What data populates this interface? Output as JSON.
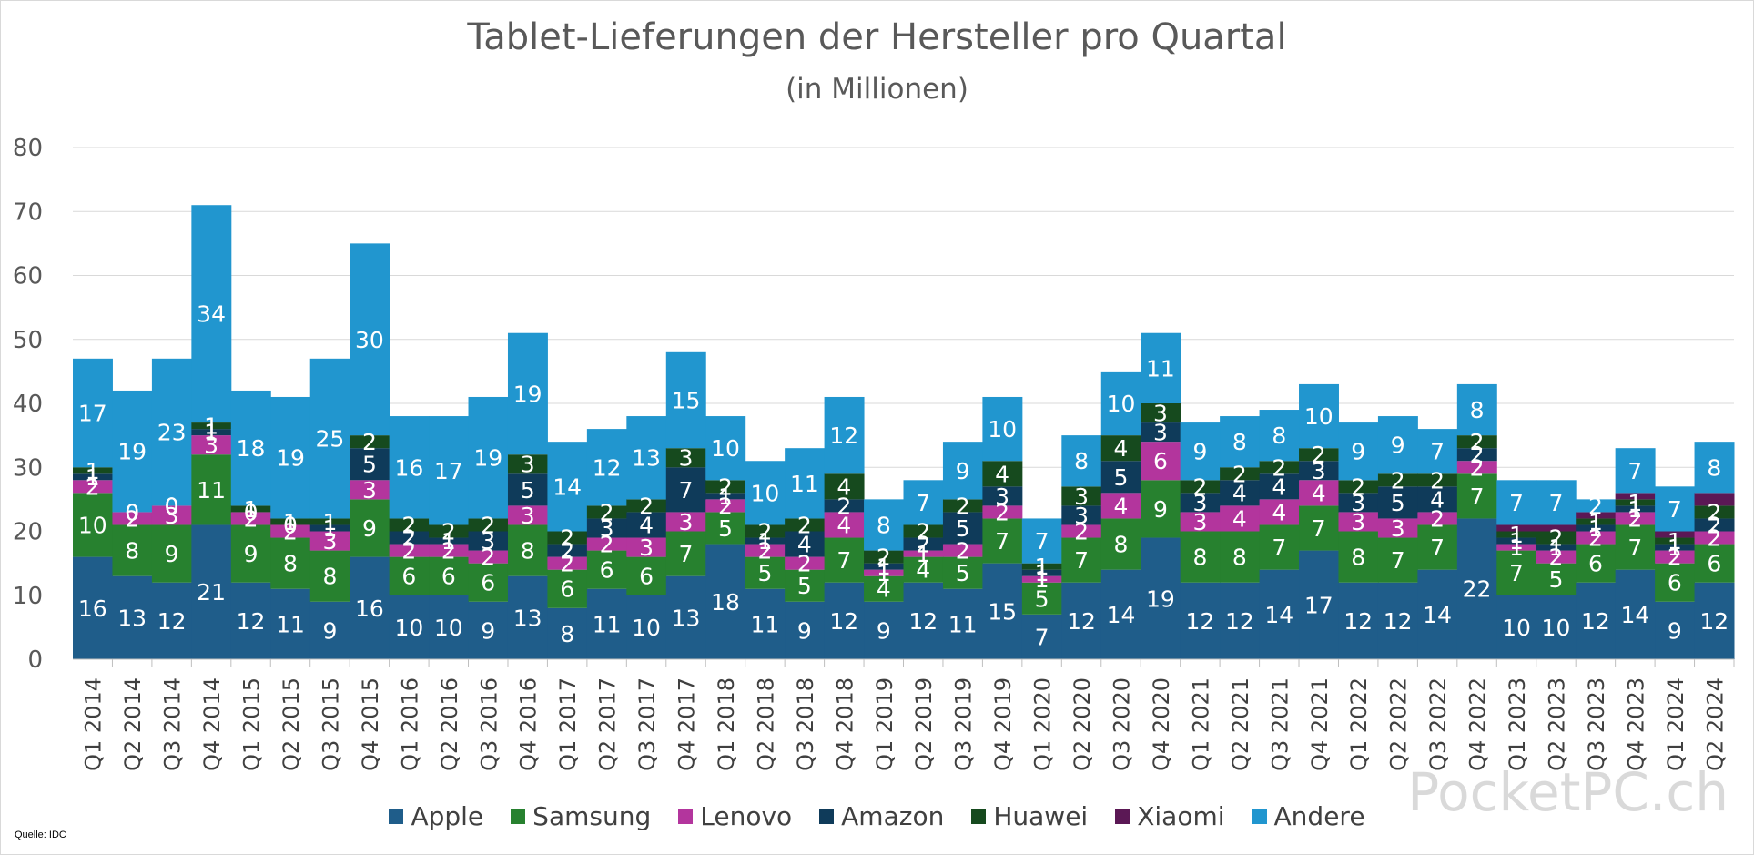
{
  "chart_data": {
    "type": "bar",
    "stacked": true,
    "title": "Tablet-Lieferungen der Hersteller pro Quartal",
    "subtitle": "(in Millionen)",
    "source": "Quelle: IDC",
    "watermark": "PocketPC.ch",
    "ylim": [
      0,
      80
    ],
    "yticks": [
      0,
      10,
      20,
      30,
      40,
      50,
      60,
      70,
      80
    ],
    "grid": true,
    "legend_position": "bottom",
    "categories": [
      "Q1 2014",
      "Q2 2014",
      "Q3 2014",
      "Q4 2014",
      "Q1 2015",
      "Q2 2015",
      "Q3 2015",
      "Q4 2015",
      "Q1 2016",
      "Q2 2016",
      "Q3 2016",
      "Q4 2016",
      "Q1 2017",
      "Q2 2017",
      "Q3 2017",
      "Q4 2017",
      "Q1 2018",
      "Q2 2018",
      "Q3 2018",
      "Q4 2018",
      "Q1 2019",
      "Q2 2019",
      "Q3 2019",
      "Q4 2019",
      "Q1 2020",
      "Q2 2020",
      "Q3 2020",
      "Q4 2020",
      "Q1 2021",
      "Q2 2021",
      "Q3 2021",
      "Q4 2021",
      "Q1 2022",
      "Q2 2022",
      "Q3 2022",
      "Q4 2022",
      "Q1 2023",
      "Q2 2023",
      "Q3 2023",
      "Q4 2023",
      "Q1 2024",
      "Q2 2024"
    ],
    "series": [
      {
        "name": "Apple",
        "color": "#1f5d8a",
        "label_color": "#ffffff",
        "values": [
          16,
          13,
          12,
          21,
          12,
          11,
          9,
          16,
          10,
          10,
          9,
          13,
          8,
          11,
          10,
          13,
          18,
          11,
          9,
          12,
          9,
          12,
          11,
          15,
          7,
          12,
          14,
          19,
          12,
          12,
          14,
          17,
          12,
          12,
          14,
          22,
          10,
          10,
          12,
          14,
          9,
          12
        ]
      },
      {
        "name": "Samsung",
        "color": "#27812f",
        "label_color": "#ffffff",
        "values": [
          10,
          8,
          9,
          11,
          9,
          8,
          8,
          9,
          6,
          6,
          6,
          8,
          6,
          6,
          6,
          7,
          5,
          5,
          5,
          7,
          4,
          4,
          5,
          7,
          5,
          7,
          8,
          9,
          8,
          8,
          7,
          7,
          8,
          7,
          7,
          7,
          7,
          5,
          6,
          7,
          6,
          6
        ]
      },
      {
        "name": "Lenovo",
        "color": "#b3359d",
        "label_color": "#ffffff",
        "values": [
          2,
          2,
          3,
          3,
          2,
          2,
          3,
          3,
          2,
          2,
          2,
          3,
          2,
          2,
          3,
          3,
          2,
          2,
          2,
          4,
          1,
          1,
          2,
          2,
          1,
          2,
          4,
          6,
          3,
          4,
          4,
          4,
          3,
          3,
          2,
          2,
          1,
          2,
          2,
          2,
          2,
          2
        ]
      },
      {
        "name": "Amazon",
        "color": "#0f3b5a",
        "label_color": "#ffffff",
        "values": [
          1,
          0,
          0,
          1,
          0,
          0,
          1,
          5,
          2,
          1,
          3,
          5,
          2,
          3,
          4,
          7,
          1,
          1,
          4,
          2,
          1,
          2,
          5,
          3,
          1,
          3,
          5,
          3,
          3,
          4,
          4,
          3,
          3,
          5,
          4,
          2,
          1,
          1,
          1,
          1,
          1,
          2
        ]
      },
      {
        "name": "Huawei",
        "color": "#164a1e",
        "label_color": "#ffffff",
        "values": [
          1,
          0,
          0,
          1,
          1,
          1,
          1,
          2,
          2,
          2,
          2,
          3,
          2,
          2,
          2,
          3,
          2,
          2,
          2,
          4,
          2,
          2,
          2,
          4,
          1,
          3,
          4,
          3,
          2,
          2,
          2,
          2,
          2,
          2,
          2,
          2,
          1,
          2,
          1,
          1,
          1,
          2
        ]
      },
      {
        "name": "Xiaomi",
        "color": "#5b1855",
        "label_color": "#ffffff",
        "values": [
          0,
          0,
          0,
          0,
          0,
          0,
          0,
          0,
          0,
          0,
          0,
          0,
          0,
          0,
          0,
          0,
          0,
          0,
          0,
          0,
          0,
          0,
          0,
          0,
          0,
          0,
          0,
          0,
          0,
          0,
          0,
          0,
          0,
          0,
          0,
          0,
          1,
          1,
          1,
          1,
          1,
          2
        ]
      },
      {
        "name": "Andere",
        "color": "#2196cf",
        "label_color": "#ffffff",
        "values": [
          17,
          19,
          23,
          34,
          18,
          19,
          25,
          30,
          16,
          17,
          19,
          19,
          14,
          12,
          13,
          15,
          10,
          10,
          11,
          12,
          8,
          7,
          9,
          10,
          7,
          8,
          10,
          11,
          9,
          8,
          8,
          10,
          9,
          9,
          7,
          8,
          7,
          7,
          2,
          7,
          7,
          8
        ]
      }
    ]
  }
}
